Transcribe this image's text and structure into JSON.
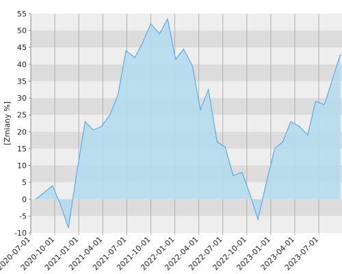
{
  "chart_data": {
    "type": "area",
    "ylabel": "[Zmiany %]",
    "x": [
      0.6,
      1.6,
      2.7,
      3.7,
      4.7,
      5.8,
      6.8,
      7.8,
      8.8,
      9.9,
      10.9,
      11.9,
      13.0,
      14.0,
      15.0,
      16.1,
      17.1,
      18.1,
      19.1,
      20.2,
      21.2,
      22.2,
      23.3,
      24.3,
      25.3,
      26.4,
      27.4,
      28.4,
      29.4,
      30.5,
      31.5,
      32.5,
      33.6,
      34.6,
      35.6,
      36.7,
      37.7,
      38.7
    ],
    "values": [
      0,
      1.8,
      4,
      -1.5,
      -8.5,
      8.5,
      23,
      20.5,
      21.5,
      25,
      31,
      44,
      42,
      46.5,
      52,
      49,
      53.5,
      41.5,
      44.5,
      39.5,
      26.5,
      32.5,
      17,
      15.5,
      7,
      8,
      1.5,
      -6,
      4.5,
      15,
      17,
      23,
      21.5,
      19,
      29,
      28,
      35.5,
      43
    ],
    "xlim": [
      0,
      38.9
    ],
    "xticks": [
      {
        "value": 0,
        "label": "2020-07-01"
      },
      {
        "value": 3,
        "label": "2020-10-01"
      },
      {
        "value": 6,
        "label": "2021-01-01"
      },
      {
        "value": 9,
        "label": "2021-04-01"
      },
      {
        "value": 12,
        "label": "2021-07-01"
      },
      {
        "value": 15,
        "label": "2021-10-01"
      },
      {
        "value": 18,
        "label": "2022-01-01"
      },
      {
        "value": 21,
        "label": "2022-04-01"
      },
      {
        "value": 24,
        "label": "2022-07-01"
      },
      {
        "value": 27,
        "label": "2022-10-01"
      },
      {
        "value": 30,
        "label": "2023-01-01"
      },
      {
        "value": 33,
        "label": "2023-04-01"
      },
      {
        "value": 36,
        "label": "2023-07-01"
      }
    ],
    "ylim": [
      -10,
      55
    ],
    "yticks": [
      -10,
      -5,
      0,
      5,
      10,
      15,
      20,
      25,
      30,
      35,
      40,
      45,
      50,
      55
    ],
    "color": "#5aa9e6",
    "fill": "#b5dcee",
    "band_colors": [
      "#dcdcdc",
      "#eeeeee"
    ],
    "grid_color": "#b0b0b0"
  }
}
